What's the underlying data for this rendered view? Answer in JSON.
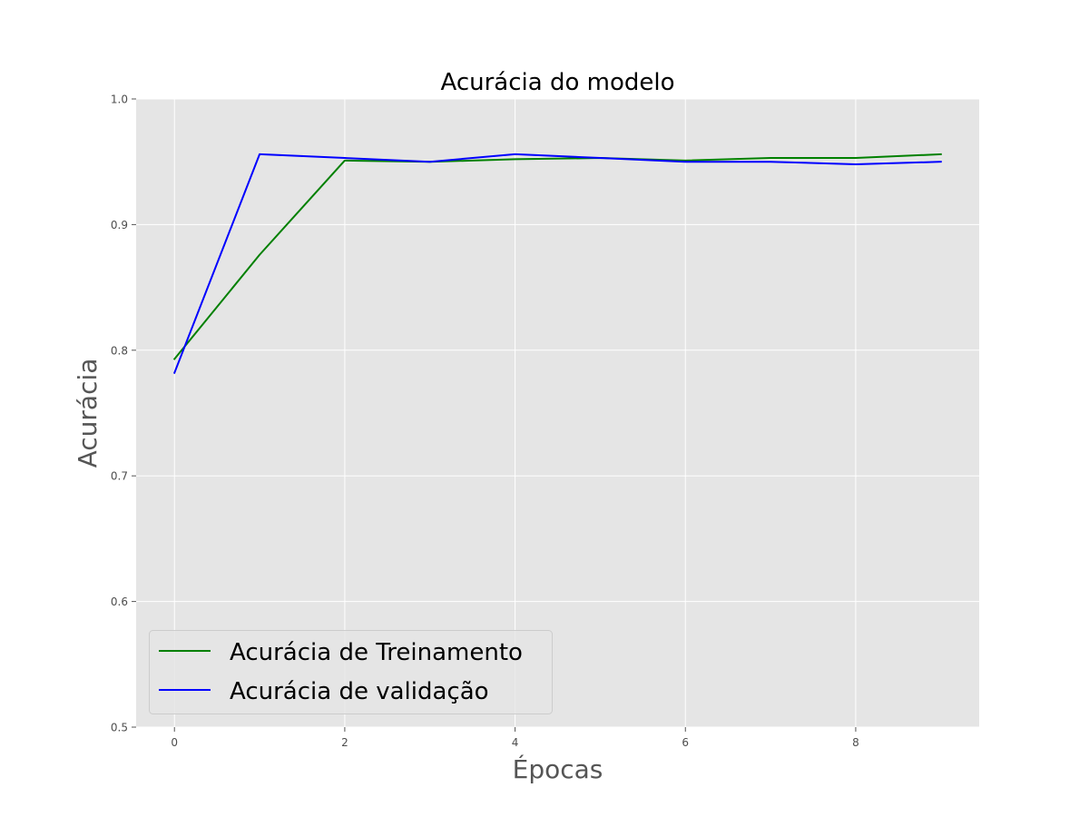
{
  "chart_data": {
    "type": "line",
    "title": "Acurácia do modelo",
    "xlabel": "Épocas",
    "ylabel": "Acurácia",
    "x": [
      0,
      1,
      2,
      3,
      4,
      5,
      6,
      7,
      8,
      9
    ],
    "xlim": [
      -0.45,
      9.45
    ],
    "ylim": [
      0.5,
      1.0
    ],
    "xticks": [
      0,
      2,
      4,
      6,
      8
    ],
    "xtick_labels": [
      "0",
      "2",
      "4",
      "6",
      "8"
    ],
    "yticks": [
      0.5,
      0.6,
      0.7,
      0.8,
      0.9,
      1.0
    ],
    "ytick_labels": [
      "0.5",
      "0.6",
      "0.7",
      "0.8",
      "0.9",
      "1.0"
    ],
    "grid": true,
    "legend_position": "lower-left",
    "series": [
      {
        "name": "Acurácia de Treinamento",
        "color": "#008000",
        "values": [
          0.793,
          0.876,
          0.951,
          0.95,
          0.952,
          0.953,
          0.951,
          0.953,
          0.953,
          0.956
        ]
      },
      {
        "name": "Acurácia de validação",
        "color": "#0000ff",
        "values": [
          0.782,
          0.956,
          0.953,
          0.95,
          0.956,
          0.953,
          0.95,
          0.95,
          0.948,
          0.95
        ]
      }
    ]
  },
  "colors": {
    "plot_background": "#e5e5e5",
    "grid": "#ffffff",
    "tick": "#555555"
  }
}
